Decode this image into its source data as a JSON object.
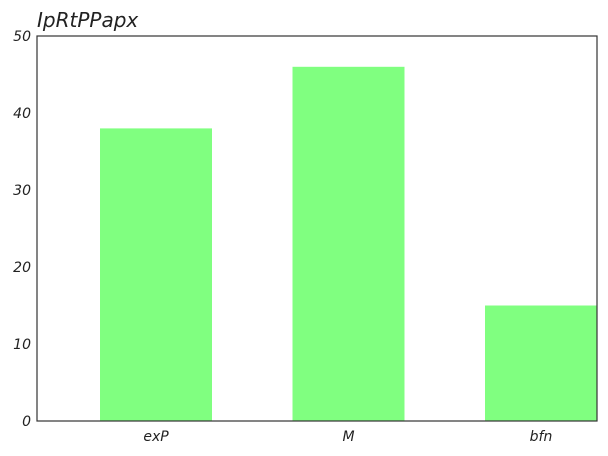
{
  "chart_data": {
    "type": "bar",
    "title": "IpRtPPapx",
    "xlabel": "",
    "ylabel": "",
    "categories": [
      "exP",
      "M",
      "bfn"
    ],
    "values": [
      38,
      46,
      15
    ],
    "ylim": [
      0,
      50
    ],
    "yticks": [
      0,
      10,
      20,
      30,
      40,
      50
    ],
    "grid": false,
    "bar_color": "#80ff80",
    "axis_color": "#333333"
  }
}
